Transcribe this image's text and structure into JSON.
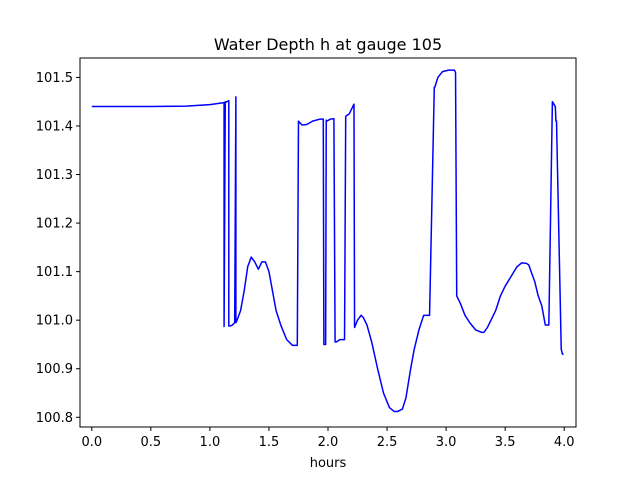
{
  "chart_data": {
    "type": "line",
    "title": "Water Depth h at gauge 105",
    "xlabel": "hours",
    "ylabel": "",
    "xlim": [
      -0.1,
      4.1
    ],
    "ylim": [
      100.78,
      101.54
    ],
    "xticks": [
      0.0,
      0.5,
      1.0,
      1.5,
      2.0,
      2.5,
      3.0,
      3.5,
      4.0
    ],
    "xtick_labels": [
      "0.0",
      "0.5",
      "1.0",
      "1.5",
      "2.0",
      "2.5",
      "3.0",
      "3.5",
      "4.0"
    ],
    "yticks": [
      100.8,
      100.9,
      101.0,
      101.1,
      101.2,
      101.3,
      101.4,
      101.5
    ],
    "ytick_labels": [
      "100.8",
      "100.9",
      "101.0",
      "101.1",
      "101.2",
      "101.3",
      "101.4",
      "101.5"
    ],
    "grid": false,
    "series": [
      {
        "color": "#0000ff",
        "x": [
          0.0,
          0.5,
          0.8,
          1.0,
          1.12,
          1.12,
          1.13,
          1.135,
          1.16,
          1.16,
          1.17,
          1.19,
          1.21,
          1.22,
          1.22,
          1.23,
          1.26,
          1.29,
          1.32,
          1.35,
          1.38,
          1.41,
          1.44,
          1.47,
          1.5,
          1.53,
          1.56,
          1.6,
          1.65,
          1.7,
          1.74,
          1.75,
          1.78,
          1.82,
          1.87,
          1.93,
          1.96,
          1.965,
          1.98,
          1.985,
          1.99,
          2.02,
          2.05,
          2.06,
          2.07,
          2.1,
          2.14,
          2.15,
          2.18,
          2.21,
          2.22,
          2.225,
          2.25,
          2.28,
          2.3,
          2.33,
          2.37,
          2.42,
          2.47,
          2.52,
          2.56,
          2.59,
          2.63,
          2.66,
          2.68,
          2.7,
          2.73,
          2.77,
          2.81,
          2.86,
          2.9,
          2.905,
          2.93,
          2.97,
          3.02,
          3.07,
          3.08,
          3.09,
          3.12,
          3.16,
          3.2,
          3.25,
          3.3,
          3.32,
          3.35,
          3.38,
          3.42,
          3.46,
          3.5,
          3.55,
          3.6,
          3.64,
          3.68,
          3.7,
          3.72,
          3.75,
          3.78,
          3.81,
          3.84,
          3.87,
          3.9,
          3.925,
          3.93,
          3.935,
          3.975,
          3.98,
          3.985,
          3.995
        ],
        "y": [
          101.44,
          101.44,
          101.441,
          101.444,
          101.448,
          100.987,
          101.45,
          101.449,
          101.452,
          100.988,
          100.988,
          100.99,
          100.995,
          101.46,
          100.995,
          101.0,
          101.02,
          101.06,
          101.11,
          101.13,
          101.12,
          101.105,
          101.12,
          101.12,
          101.1,
          101.06,
          101.02,
          100.99,
          100.96,
          100.948,
          100.948,
          101.41,
          101.402,
          101.403,
          101.41,
          101.414,
          101.414,
          100.95,
          100.95,
          101.412,
          101.41,
          101.414,
          101.415,
          100.955,
          100.955,
          100.96,
          100.96,
          101.42,
          101.425,
          101.44,
          101.445,
          100.985,
          101.0,
          101.01,
          101.005,
          100.99,
          100.955,
          100.9,
          100.85,
          100.82,
          100.812,
          100.812,
          100.817,
          100.84,
          100.87,
          100.9,
          100.94,
          100.98,
          101.01,
          101.01,
          101.48,
          101.48,
          101.5,
          101.512,
          101.515,
          101.515,
          101.51,
          101.05,
          101.035,
          101.01,
          100.995,
          100.98,
          100.975,
          100.975,
          100.985,
          101.0,
          101.02,
          101.05,
          101.07,
          101.09,
          101.11,
          101.118,
          101.117,
          101.114,
          101.1,
          101.08,
          101.05,
          101.03,
          100.99,
          100.99,
          101.45,
          101.44,
          101.41,
          101.41,
          100.94,
          100.935,
          100.93,
          100.93
        ]
      }
    ]
  }
}
